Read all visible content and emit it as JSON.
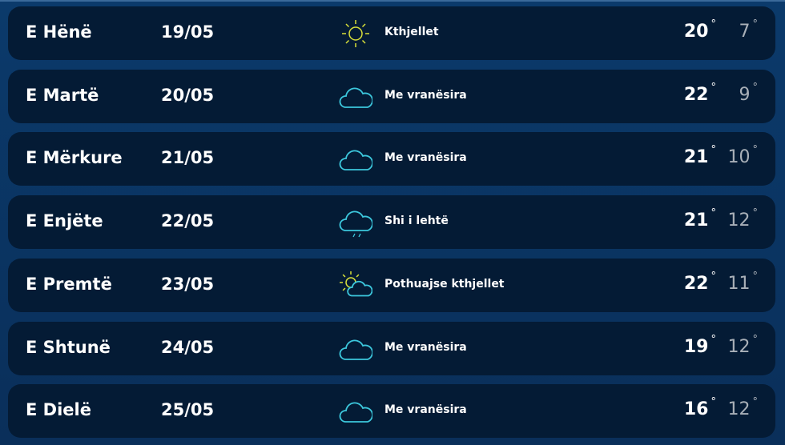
{
  "colors": {
    "background": "#0a2f5a",
    "card": "#041b35",
    "sun": "#d8e03a",
    "cloud": "#3cc7dc",
    "low_temp": "#a9b0b8"
  },
  "days": [
    {
      "day": "E Hënë",
      "date": "19/05",
      "icon": "sun-icon",
      "desc": "Kthjellet",
      "high": "20",
      "low": "7"
    },
    {
      "day": "E Martë",
      "date": "20/05",
      "icon": "cloud-icon",
      "desc": "Me vranësira",
      "high": "22",
      "low": "9"
    },
    {
      "day": "E Mërkure",
      "date": "21/05",
      "icon": "cloud-icon",
      "desc": "Me vranësira",
      "high": "21",
      "low": "10"
    },
    {
      "day": "E Enjëte",
      "date": "22/05",
      "icon": "rain-cloud-icon",
      "desc": "Shi i lehtë",
      "high": "21",
      "low": "12"
    },
    {
      "day": "E Premtë",
      "date": "23/05",
      "icon": "partly-cloudy-icon",
      "desc": "Pothuajse kthjellet",
      "high": "22",
      "low": "11"
    },
    {
      "day": "E Shtunë",
      "date": "24/05",
      "icon": "cloud-icon",
      "desc": "Me vranësira",
      "high": "19",
      "low": "12"
    },
    {
      "day": "E Dielë",
      "date": "25/05",
      "icon": "cloud-icon",
      "desc": "Me vranësira",
      "high": "16",
      "low": "12"
    }
  ],
  "degree_symbol": "°"
}
